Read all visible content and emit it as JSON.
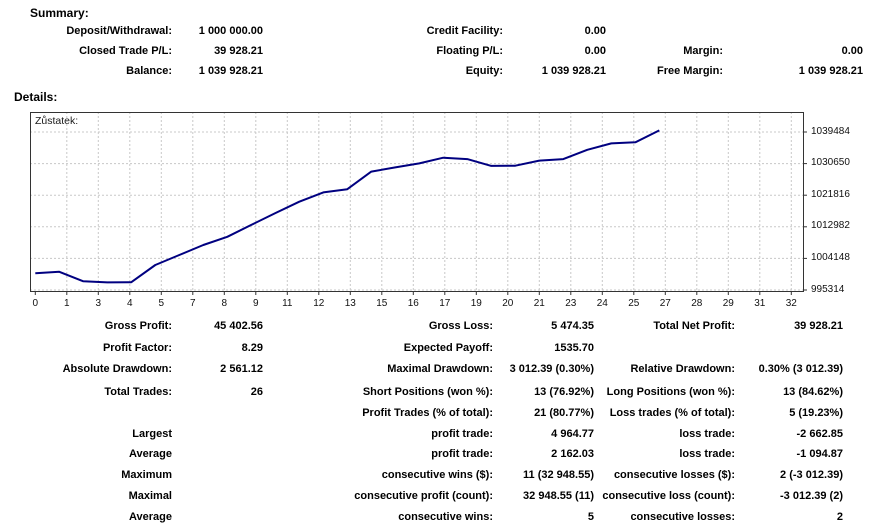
{
  "summary": {
    "heading": "Summary:",
    "rows": [
      [
        "Deposit/Withdrawal:",
        "1 000 000.00",
        "Credit Facility:",
        "0.00",
        "",
        ""
      ],
      [
        "Closed Trade P/L:",
        "39 928.21",
        "Floating P/L:",
        "0.00",
        "Margin:",
        "0.00"
      ],
      [
        "Balance:",
        "1 039 928.21",
        "Equity:",
        "1 039 928.21",
        "Free Margin:",
        "1 039 928.21"
      ]
    ]
  },
  "details": {
    "heading": "Details:",
    "rows_top": [
      [
        "Gross Profit:",
        "45 402.56",
        "Gross Loss:",
        "5 474.35",
        "Total Net Profit:",
        "39 928.21"
      ],
      [
        "Profit Factor:",
        "8.29",
        "Expected Payoff:",
        "1535.70",
        "",
        ""
      ],
      [
        "Absolute Drawdown:",
        "2 561.12",
        "Maximal Drawdown:",
        "3 012.39 (0.30%)",
        "Relative Drawdown:",
        "0.30% (3 012.39)"
      ]
    ],
    "rows_bottom": [
      [
        "Total Trades:",
        "26",
        "Short Positions (won %):",
        "13 (76.92%)",
        "Long Positions (won %):",
        "13 (84.62%)"
      ],
      [
        "",
        "",
        "Profit Trades (% of total):",
        "21 (80.77%)",
        "Loss trades (% of total):",
        "5 (19.23%)"
      ],
      [
        "Largest",
        "",
        "profit trade:",
        "4 964.77",
        "loss trade:",
        "-2 662.85"
      ],
      [
        "Average",
        "",
        "profit trade:",
        "2 162.03",
        "loss trade:",
        "-1 094.87"
      ],
      [
        "Maximum",
        "",
        "consecutive wins ($):",
        "11 (32 948.55)",
        "consecutive losses ($):",
        "2 (-3 012.39)"
      ],
      [
        "Maximal",
        "",
        "consecutive profit (count):",
        "32 948.55 (11)",
        "consecutive loss (count):",
        "-3 012.39 (2)"
      ],
      [
        "Average",
        "",
        "consecutive wins:",
        "5",
        "consecutive losses:",
        "2"
      ]
    ]
  },
  "chart_data": {
    "type": "line",
    "title": "Zůstatek:",
    "xlabel": "",
    "ylabel": "",
    "x": [
      0,
      1,
      2,
      3,
      4,
      5,
      6,
      7,
      8,
      9,
      10,
      11,
      12,
      13,
      14,
      15,
      16,
      17,
      18,
      19,
      20,
      21,
      22,
      23,
      24,
      25,
      26
    ],
    "series": [
      {
        "name": "Zůstatek (balance)",
        "values": [
          1000000,
          1000400,
          997737,
          997439,
          997500,
          1002300,
          1005100,
          1007900,
          1010200,
          1013500,
          1016800,
          1020000,
          1022600,
          1023500,
          1028400,
          1029600,
          1030700,
          1032300,
          1031900,
          1030000,
          1030050,
          1031500,
          1031900,
          1034500,
          1036300,
          1036600,
          1039928
        ]
      }
    ],
    "x_tick_labels": [
      "0",
      "1",
      "3",
      "4",
      "5",
      "7",
      "8",
      "9",
      "11",
      "12",
      "13",
      "15",
      "16",
      "17",
      "19",
      "20",
      "21",
      "23",
      "24",
      "25",
      "27",
      "28",
      "29",
      "31",
      "32"
    ],
    "y_tick_labels": [
      "1039484",
      "1030650",
      "1021816",
      "1012982",
      "1004148",
      "995314"
    ],
    "y_tick_values": [
      1039484,
      1030650,
      1021816,
      1012982,
      1004148,
      995314
    ],
    "xlim": [
      0,
      32
    ],
    "ylim": [
      993920,
      1045080
    ],
    "grid": true,
    "legend_position": "none",
    "line_color": "#000080",
    "grid_color": "#c8c8c8",
    "axis_color": "#333333"
  }
}
